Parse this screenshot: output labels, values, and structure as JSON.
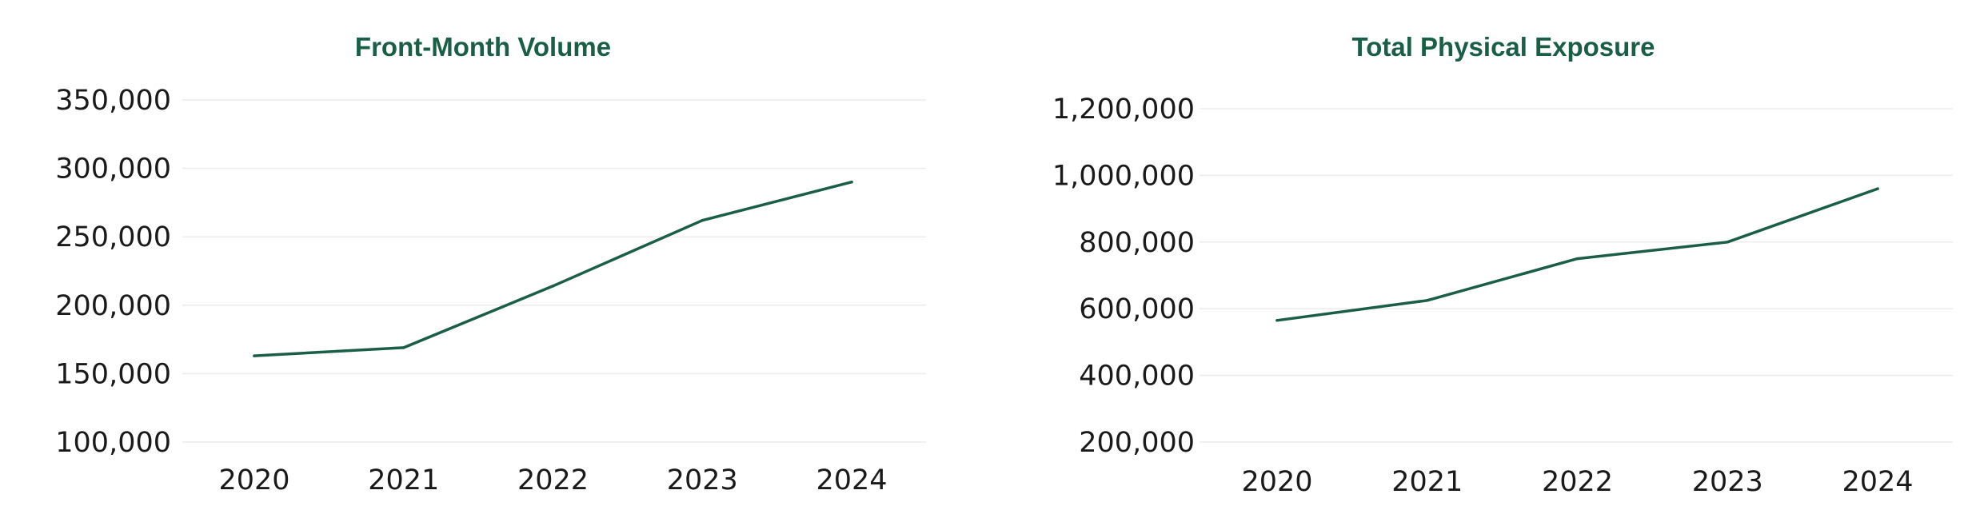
{
  "theme": {
    "accent": "#1a5e46",
    "text": "#1a1a1a",
    "grid": "#ececec",
    "background": "#ffffff"
  },
  "chart_data": [
    {
      "type": "line",
      "title": "Front-Month Volume",
      "xlabel": "",
      "ylabel": "",
      "categories": [
        "2020",
        "2021",
        "2022",
        "2023",
        "2024"
      ],
      "series": [
        {
          "values": [
            163000,
            169000,
            214000,
            262000,
            290000
          ]
        }
      ],
      "ylim": [
        100000,
        350000
      ],
      "yticks": [
        100000,
        150000,
        200000,
        250000,
        300000,
        350000
      ],
      "ytick_labels": [
        "100,000",
        "150,000",
        "200,000",
        "250,000",
        "300,000",
        "350,000"
      ],
      "grid": true,
      "legend": "none"
    },
    {
      "type": "line",
      "title": "Total Physical Exposure",
      "xlabel": "",
      "ylabel": "",
      "categories": [
        "2020",
        "2021",
        "2022",
        "2023",
        "2024"
      ],
      "series": [
        {
          "values": [
            565000,
            625000,
            750000,
            800000,
            960000
          ]
        }
      ],
      "ylim": [
        200000,
        1200000
      ],
      "yticks": [
        200000,
        400000,
        600000,
        800000,
        1000000,
        1200000
      ],
      "ytick_labels": [
        "200,000",
        "400,000",
        "600,000",
        "800,000",
        "1,000,000",
        "1,200,000"
      ],
      "grid": true,
      "legend": "none"
    }
  ]
}
